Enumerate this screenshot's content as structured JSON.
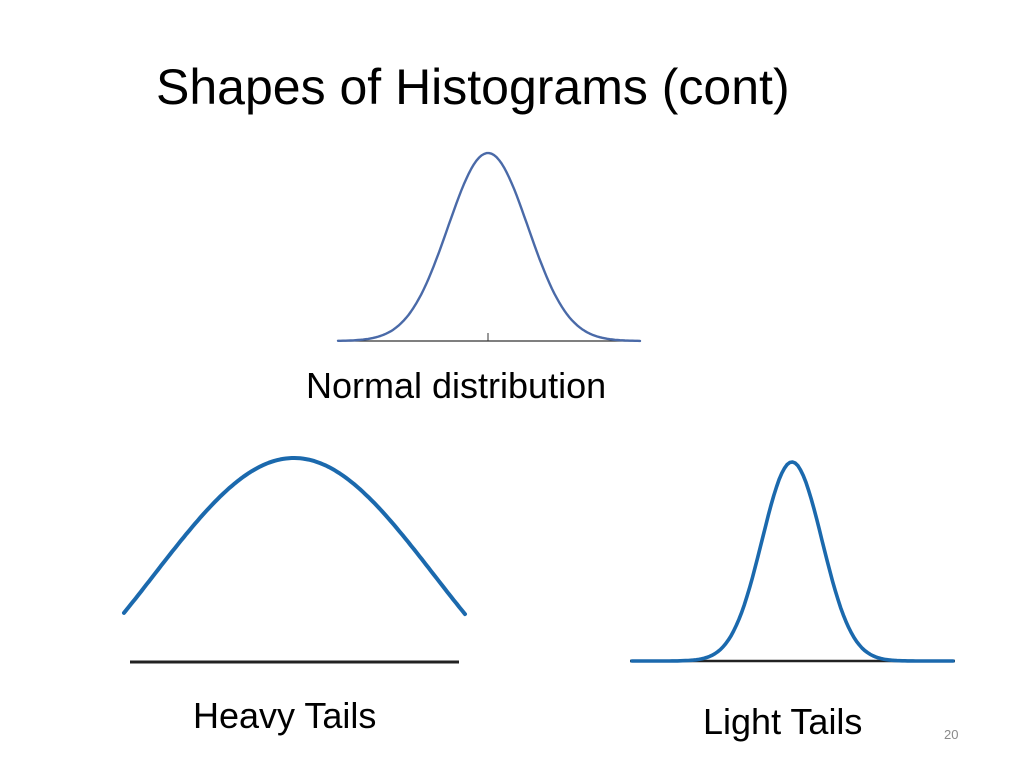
{
  "slide": {
    "title": "Shapes of Histograms (cont)",
    "page_number": "20"
  },
  "figures": {
    "normal": {
      "caption": "Normal distribution",
      "curve_color": "#4a6aa8",
      "baseline_color": "#333333"
    },
    "heavy_tails": {
      "caption": "Heavy Tails",
      "curve_color": "#1b69ad",
      "baseline_color": "#222222"
    },
    "light_tails": {
      "caption": "Light Tails",
      "curve_color": "#1b69ad",
      "baseline_color": "#222222"
    }
  }
}
